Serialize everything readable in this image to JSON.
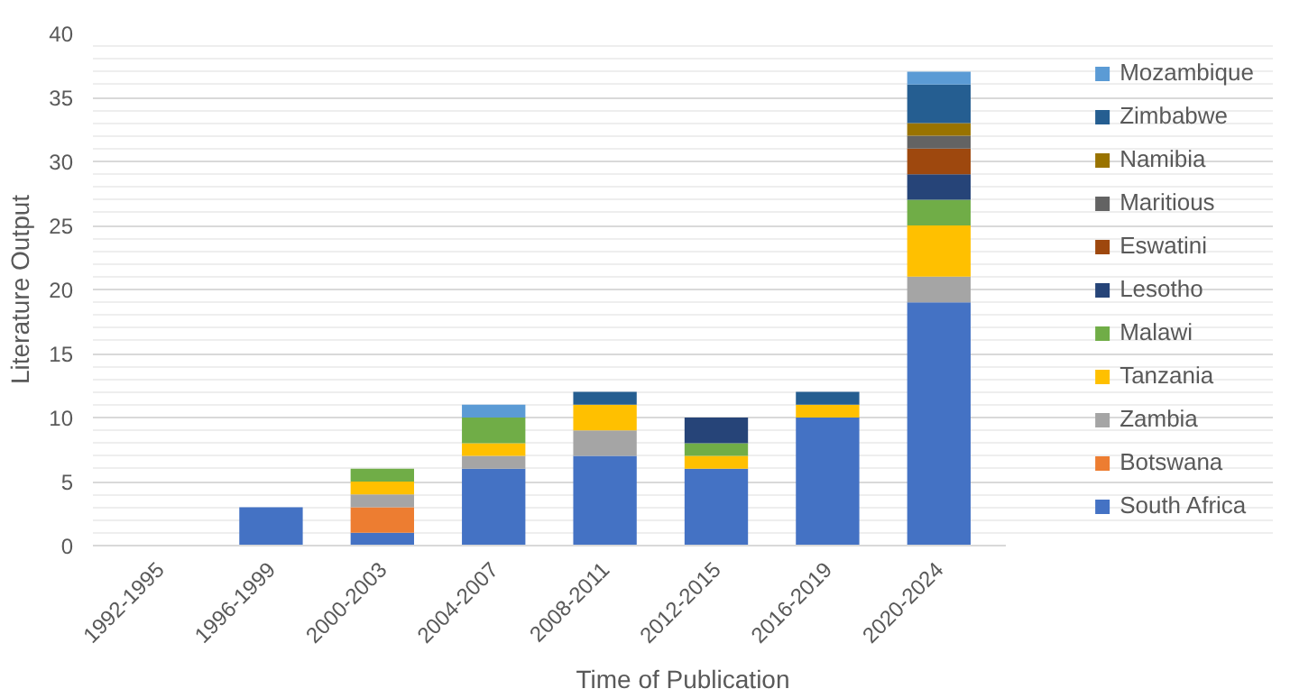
{
  "chart_data": {
    "type": "bar",
    "stacked": true,
    "xlabel": "Time of Publication",
    "ylabel": "Literature Output",
    "categories": [
      "1992-1995",
      "1996-1999",
      "2000-2003",
      "2004-2007",
      "2008-2011",
      "2012-2015",
      "2016-2019",
      "2020-2024"
    ],
    "ylim": [
      0,
      40
    ],
    "yticks": [
      0,
      5,
      10,
      15,
      20,
      25,
      30,
      35,
      40
    ],
    "grid": "y",
    "legend": "right",
    "series": [
      {
        "name": "South Africa",
        "color": "#4472c4",
        "values": [
          0,
          3,
          1,
          6,
          7,
          6,
          10,
          19
        ]
      },
      {
        "name": "Botswana",
        "color": "#ed7d31",
        "values": [
          0,
          0,
          2,
          0,
          0,
          0,
          0,
          0
        ]
      },
      {
        "name": "Zambia",
        "color": "#a5a5a5",
        "values": [
          0,
          0,
          1,
          1,
          2,
          0,
          0,
          2
        ]
      },
      {
        "name": "Tanzania",
        "color": "#ffc000",
        "values": [
          0,
          0,
          1,
          1,
          2,
          1,
          1,
          4
        ]
      },
      {
        "name": "Malawi",
        "color": "#70ad47",
        "values": [
          0,
          0,
          1,
          2,
          0,
          1,
          0,
          2
        ]
      },
      {
        "name": "Lesotho",
        "color": "#264478",
        "values": [
          0,
          0,
          0,
          0,
          0,
          2,
          0,
          2
        ]
      },
      {
        "name": "Eswatini",
        "color": "#9e480e",
        "values": [
          0,
          0,
          0,
          0,
          0,
          0,
          0,
          2
        ]
      },
      {
        "name": "Maritious",
        "color": "#636363",
        "values": [
          0,
          0,
          0,
          0,
          0,
          0,
          0,
          1
        ]
      },
      {
        "name": "Namibia",
        "color": "#997300",
        "values": [
          0,
          0,
          0,
          0,
          0,
          0,
          0,
          1
        ]
      },
      {
        "name": "Zimbabwe",
        "color": "#255e91",
        "values": [
          0,
          0,
          0,
          0,
          1,
          0,
          1,
          3
        ]
      },
      {
        "name": "Mozambique",
        "color": "#5b9bd5",
        "values": [
          0,
          0,
          0,
          1,
          0,
          0,
          0,
          1
        ]
      }
    ]
  }
}
